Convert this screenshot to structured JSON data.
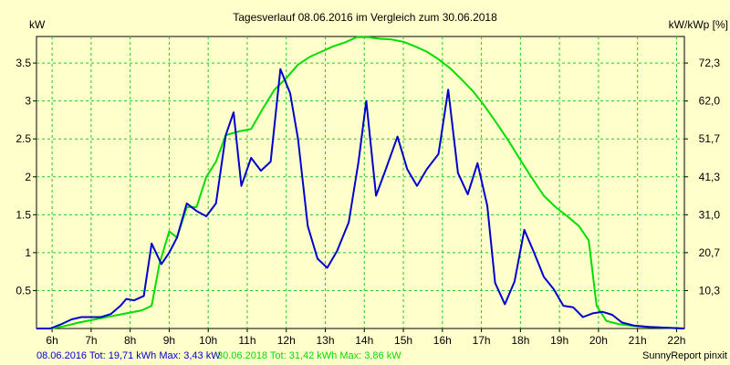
{
  "chart_data": {
    "type": "line",
    "title": "Tagesverlauf 08.06.2016 im Vergleich zum 30.06.2018",
    "ylabel_left": "kW",
    "ylabel_right": "kW/kWp [%]",
    "xlim": [
      5.6,
      22.2
    ],
    "ylim": [
      0,
      3.85
    ],
    "x_ticks": [
      {
        "value": 6,
        "label": "6h"
      },
      {
        "value": 7,
        "label": "7h"
      },
      {
        "value": 8,
        "label": "8h"
      },
      {
        "value": 9,
        "label": "9h"
      },
      {
        "value": 10,
        "label": "10h"
      },
      {
        "value": 11,
        "label": "11h"
      },
      {
        "value": 12,
        "label": "12h"
      },
      {
        "value": 13,
        "label": "13h"
      },
      {
        "value": 14,
        "label": "14h"
      },
      {
        "value": 15,
        "label": "15h"
      },
      {
        "value": 16,
        "label": "16h"
      },
      {
        "value": 17,
        "label": "17h"
      },
      {
        "value": 18,
        "label": "18h"
      },
      {
        "value": 19,
        "label": "19h"
      },
      {
        "value": 20,
        "label": "20h"
      },
      {
        "value": 21,
        "label": "21h"
      },
      {
        "value": 22,
        "label": "22h"
      }
    ],
    "y_ticks_left": [
      {
        "value": 0.5,
        "label": "0.5"
      },
      {
        "value": 1,
        "label": "1"
      },
      {
        "value": 1.5,
        "label": "1.5"
      },
      {
        "value": 2,
        "label": "2"
      },
      {
        "value": 2.5,
        "label": "2.5"
      },
      {
        "value": 3,
        "label": "3"
      },
      {
        "value": 3.5,
        "label": "3.5"
      }
    ],
    "y_ticks_right": [
      {
        "value": 0.5,
        "label": "10,3"
      },
      {
        "value": 1,
        "label": "20,7"
      },
      {
        "value": 1.5,
        "label": "31,0"
      },
      {
        "value": 2,
        "label": "41,3"
      },
      {
        "value": 2.5,
        "label": "51,7"
      },
      {
        "value": 3,
        "label": "62,0"
      },
      {
        "value": 3.5,
        "label": "72,3"
      }
    ],
    "grid": true,
    "grid_color": "#22cc22",
    "series": [
      {
        "name": "08.06.2016",
        "color": "#0000cc",
        "points": [
          [
            5.6,
            0
          ],
          [
            5.95,
            0
          ],
          [
            6.25,
            0.06
          ],
          [
            6.5,
            0.12
          ],
          [
            6.75,
            0.15
          ],
          [
            7.0,
            0.15
          ],
          [
            7.25,
            0.15
          ],
          [
            7.5,
            0.19
          ],
          [
            7.75,
            0.3
          ],
          [
            7.9,
            0.39
          ],
          [
            8.1,
            0.37
          ],
          [
            8.35,
            0.43
          ],
          [
            8.55,
            1.12
          ],
          [
            8.8,
            0.85
          ],
          [
            9.0,
            1.0
          ],
          [
            9.2,
            1.2
          ],
          [
            9.45,
            1.65
          ],
          [
            9.7,
            1.55
          ],
          [
            9.95,
            1.48
          ],
          [
            10.2,
            1.65
          ],
          [
            10.45,
            2.55
          ],
          [
            10.65,
            2.85
          ],
          [
            10.85,
            1.88
          ],
          [
            11.1,
            2.25
          ],
          [
            11.35,
            2.08
          ],
          [
            11.6,
            2.2
          ],
          [
            11.85,
            3.42
          ],
          [
            12.1,
            3.1
          ],
          [
            12.3,
            2.5
          ],
          [
            12.55,
            1.35
          ],
          [
            12.8,
            0.92
          ],
          [
            13.05,
            0.8
          ],
          [
            13.3,
            1.02
          ],
          [
            13.6,
            1.4
          ],
          [
            13.85,
            2.2
          ],
          [
            14.05,
            3.0
          ],
          [
            14.3,
            1.75
          ],
          [
            14.55,
            2.1
          ],
          [
            14.85,
            2.53
          ],
          [
            15.1,
            2.1
          ],
          [
            15.35,
            1.88
          ],
          [
            15.6,
            2.1
          ],
          [
            15.9,
            2.3
          ],
          [
            16.15,
            3.15
          ],
          [
            16.4,
            2.05
          ],
          [
            16.65,
            1.77
          ],
          [
            16.9,
            2.18
          ],
          [
            17.15,
            1.62
          ],
          [
            17.35,
            0.6
          ],
          [
            17.6,
            0.32
          ],
          [
            17.85,
            0.62
          ],
          [
            18.1,
            1.3
          ],
          [
            18.35,
            1.0
          ],
          [
            18.6,
            0.68
          ],
          [
            18.85,
            0.52
          ],
          [
            19.1,
            0.3
          ],
          [
            19.35,
            0.28
          ],
          [
            19.6,
            0.15
          ],
          [
            19.85,
            0.2
          ],
          [
            20.1,
            0.22
          ],
          [
            20.35,
            0.18
          ],
          [
            20.6,
            0.08
          ],
          [
            20.9,
            0.04
          ],
          [
            21.3,
            0.02
          ],
          [
            21.8,
            0.01
          ],
          [
            22.2,
            0.0
          ]
        ]
      },
      {
        "name": "30.06.2018",
        "color": "#00dd00",
        "points": [
          [
            5.6,
            0
          ],
          [
            5.95,
            0
          ],
          [
            6.3,
            0.03
          ],
          [
            6.7,
            0.08
          ],
          [
            7.1,
            0.12
          ],
          [
            7.5,
            0.16
          ],
          [
            7.9,
            0.2
          ],
          [
            8.3,
            0.24
          ],
          [
            8.55,
            0.3
          ],
          [
            8.75,
            0.85
          ],
          [
            9.0,
            1.28
          ],
          [
            9.2,
            1.2
          ],
          [
            9.45,
            1.6
          ],
          [
            9.7,
            1.6
          ],
          [
            9.95,
            2.0
          ],
          [
            10.2,
            2.2
          ],
          [
            10.45,
            2.55
          ],
          [
            10.8,
            2.6
          ],
          [
            11.1,
            2.63
          ],
          [
            11.4,
            2.9
          ],
          [
            11.7,
            3.15
          ],
          [
            12.0,
            3.3
          ],
          [
            12.3,
            3.48
          ],
          [
            12.6,
            3.58
          ],
          [
            12.9,
            3.65
          ],
          [
            13.2,
            3.72
          ],
          [
            13.5,
            3.77
          ],
          [
            13.8,
            3.84
          ],
          [
            14.1,
            3.84
          ],
          [
            14.4,
            3.82
          ],
          [
            14.7,
            3.81
          ],
          [
            15.0,
            3.78
          ],
          [
            15.3,
            3.72
          ],
          [
            15.6,
            3.65
          ],
          [
            15.9,
            3.55
          ],
          [
            16.2,
            3.43
          ],
          [
            16.5,
            3.28
          ],
          [
            16.8,
            3.12
          ],
          [
            17.1,
            2.92
          ],
          [
            17.4,
            2.7
          ],
          [
            17.7,
            2.47
          ],
          [
            18.0,
            2.22
          ],
          [
            18.3,
            1.98
          ],
          [
            18.6,
            1.75
          ],
          [
            18.9,
            1.6
          ],
          [
            19.2,
            1.48
          ],
          [
            19.5,
            1.35
          ],
          [
            19.75,
            1.16
          ],
          [
            19.95,
            0.3
          ],
          [
            20.2,
            0.1
          ],
          [
            20.5,
            0.06
          ],
          [
            20.8,
            0.04
          ],
          [
            21.2,
            0.02
          ],
          [
            21.7,
            0.01
          ],
          [
            22.2,
            0.0
          ]
        ]
      }
    ],
    "legend": [
      {
        "text": "08.06.2016 Tot: 19,71 kWh Max: 3,43 kW",
        "color": "#0000cc"
      },
      {
        "text": "30.06.2018 Tot: 31,42 kWh Max: 3,86 kW",
        "color": "#00dd00"
      }
    ],
    "credit": "SunnyReport pinxit"
  }
}
